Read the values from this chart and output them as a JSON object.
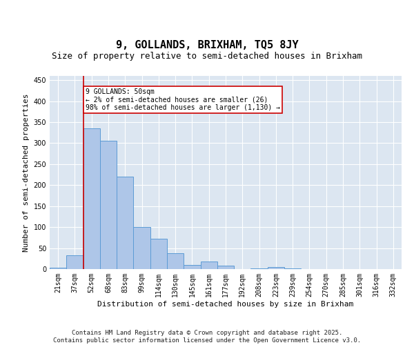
{
  "title": "9, GOLLANDS, BRIXHAM, TQ5 8JY",
  "subtitle": "Size of property relative to semi-detached houses in Brixham",
  "xlabel": "Distribution of semi-detached houses by size in Brixham",
  "ylabel": "Number of semi-detached properties",
  "categories": [
    "21sqm",
    "37sqm",
    "52sqm",
    "68sqm",
    "83sqm",
    "99sqm",
    "114sqm",
    "130sqm",
    "145sqm",
    "161sqm",
    "177sqm",
    "192sqm",
    "208sqm",
    "223sqm",
    "239sqm",
    "254sqm",
    "270sqm",
    "285sqm",
    "301sqm",
    "316sqm",
    "332sqm"
  ],
  "values": [
    3,
    33,
    335,
    305,
    220,
    100,
    73,
    37,
    10,
    18,
    9,
    0,
    2,
    5,
    1,
    0,
    0,
    0,
    0,
    0,
    0
  ],
  "bar_color": "#aec6e8",
  "bar_edge_color": "#5b9bd5",
  "vline_color": "#cc0000",
  "annotation_line1": "9 GOLLANDS: 50sqm",
  "annotation_line2": "← 2% of semi-detached houses are smaller (26)",
  "annotation_line3": "98% of semi-detached houses are larger (1,130) →",
  "annotation_box_color": "#ffffff",
  "annotation_box_edge": "#cc0000",
  "ylim": [
    0,
    460
  ],
  "yticks": [
    0,
    50,
    100,
    150,
    200,
    250,
    300,
    350,
    400,
    450
  ],
  "plot_bg_color": "#dce6f1",
  "footer_text": "Contains HM Land Registry data © Crown copyright and database right 2025.\nContains public sector information licensed under the Open Government Licence v3.0.",
  "title_fontsize": 11,
  "subtitle_fontsize": 9,
  "axis_label_fontsize": 8,
  "tick_fontsize": 7,
  "annotation_fontsize": 7,
  "footer_fontsize": 6.5
}
